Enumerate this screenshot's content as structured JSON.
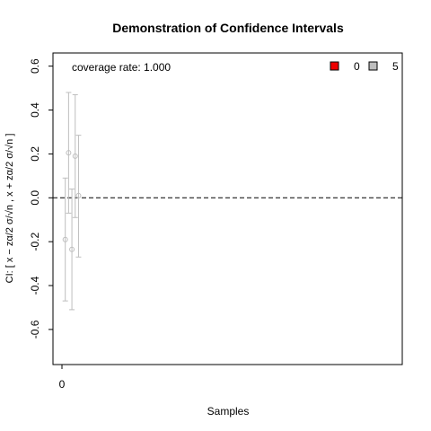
{
  "chart_data": {
    "type": "scatter",
    "title": "Demonstration of Confidence Intervals",
    "xlabel": "Samples",
    "ylabel": "CI: [ x − zα/2 σ/√n ,  x + zα/2 σ/√n ]",
    "xlim": [
      0,
      100
    ],
    "ylim": [
      -0.76,
      0.66
    ],
    "xticks": [
      0
    ],
    "yticks": [
      -0.6,
      -0.4,
      -0.2,
      0.0,
      0.2,
      0.4,
      0.6
    ],
    "ytick_labels": [
      "-0.6",
      "-0.4",
      "-0.2",
      "0.0",
      "0.2",
      "0.4",
      "0.6"
    ],
    "xtick_labels": [
      "0"
    ],
    "reference_line": 0,
    "coverage_text": "coverage rate: 1.000",
    "legend": [
      {
        "label": "0",
        "color": "#ee0000"
      },
      {
        "label": "5",
        "color": "#bebebe"
      }
    ],
    "intervals": [
      {
        "x": 1,
        "mean": -0.19,
        "lower": -0.47,
        "upper": 0.09
      },
      {
        "x": 2,
        "mean": 0.205,
        "lower": -0.07,
        "upper": 0.48
      },
      {
        "x": 3,
        "mean": -0.235,
        "lower": -0.51,
        "upper": 0.04
      },
      {
        "x": 4,
        "mean": 0.19,
        "lower": -0.09,
        "upper": 0.47
      },
      {
        "x": 5,
        "mean": 0.01,
        "lower": -0.27,
        "upper": 0.285
      }
    ],
    "interval_color": "#bebebe"
  }
}
